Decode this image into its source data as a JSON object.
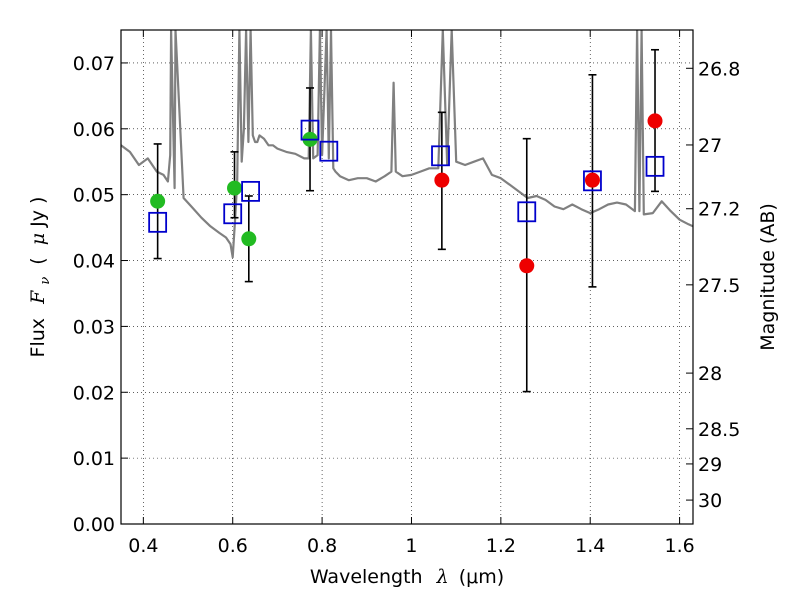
{
  "chart_data": {
    "type": "scatter",
    "title": "",
    "xlabel_text": "Wavelength",
    "xlabel_symbol": "λ",
    "xlabel_unit": "(μm)",
    "ylabel_text": "Flux",
    "ylabel_symbol": "F",
    "ylabel_subscript": "ν",
    "ylabel_unit_open": "(",
    "ylabel_unit_symbol": "μ",
    "ylabel_unit_rest": "Jy )",
    "y2label": "Magnitude (AB)",
    "xlim": [
      0.35,
      1.63
    ],
    "ylim": [
      0.0,
      0.075
    ],
    "x_ticks": [
      0.4,
      0.6,
      0.8,
      1.0,
      1.2,
      1.4,
      1.6
    ],
    "x_tick_labels": [
      "0.4",
      "0.6",
      "0.8",
      "1",
      "1.2",
      "1.4",
      "1.6"
    ],
    "y_ticks": [
      0.0,
      0.01,
      0.02,
      0.03,
      0.04,
      0.05,
      0.06,
      0.07
    ],
    "y_tick_labels": [
      "0.00",
      "0.01",
      "0.02",
      "0.03",
      "0.04",
      "0.05",
      "0.06",
      "0.07"
    ],
    "y2_ticks": [
      26.8,
      27,
      27.2,
      27.5,
      28,
      28.5,
      29,
      30
    ],
    "y2_tick_labels": [
      "26.8",
      "27",
      "27.2",
      "27.5",
      "28",
      "28.5",
      "29",
      "30"
    ],
    "grid": true,
    "colors": {
      "model_line": "#808080",
      "green_points": "#22bb22",
      "red_points": "#ee0000",
      "model_boxes": "#0000cc",
      "error_bars": "#000000"
    },
    "model_spectrum": {
      "x": [
        0.35,
        0.37,
        0.39,
        0.41,
        0.43,
        0.445,
        0.455,
        0.46,
        0.462,
        0.47,
        0.472,
        0.49,
        0.51,
        0.53,
        0.55,
        0.57,
        0.585,
        0.595,
        0.6,
        0.605,
        0.61,
        0.615,
        0.62,
        0.625,
        0.63,
        0.635,
        0.64,
        0.645,
        0.65,
        0.655,
        0.66,
        0.67,
        0.68,
        0.69,
        0.7,
        0.72,
        0.74,
        0.76,
        0.77,
        0.775,
        0.78,
        0.79,
        0.795,
        0.8,
        0.81,
        0.815,
        0.82,
        0.825,
        0.83,
        0.84,
        0.86,
        0.88,
        0.9,
        0.92,
        0.94,
        0.955,
        0.96,
        0.965,
        0.98,
        1.0,
        1.02,
        1.04,
        1.06,
        1.07,
        1.08,
        1.09,
        1.1,
        1.12,
        1.14,
        1.16,
        1.18,
        1.2,
        1.22,
        1.24,
        1.26,
        1.28,
        1.3,
        1.32,
        1.34,
        1.36,
        1.38,
        1.4,
        1.42,
        1.44,
        1.46,
        1.48,
        1.5,
        1.505,
        1.51,
        1.515,
        1.52,
        1.54,
        1.56,
        1.58,
        1.6,
        1.62,
        1.63
      ],
      "y": [
        0.0575,
        0.0565,
        0.0545,
        0.0555,
        0.0535,
        0.053,
        0.052,
        0.056,
        0.075,
        0.051,
        0.075,
        0.0495,
        0.048,
        0.0465,
        0.0452,
        0.0442,
        0.0435,
        0.0425,
        0.0405,
        0.046,
        0.052,
        0.075,
        0.055,
        0.06,
        0.075,
        0.058,
        0.075,
        0.059,
        0.058,
        0.058,
        0.059,
        0.0585,
        0.0575,
        0.0575,
        0.057,
        0.0565,
        0.0562,
        0.0555,
        0.0555,
        0.075,
        0.0555,
        0.056,
        0.075,
        0.056,
        0.075,
        0.0555,
        0.075,
        0.054,
        0.0535,
        0.0528,
        0.0522,
        0.0525,
        0.0525,
        0.052,
        0.0528,
        0.0535,
        0.067,
        0.0535,
        0.0528,
        0.053,
        0.0535,
        0.054,
        0.054,
        0.075,
        0.0545,
        0.075,
        0.055,
        0.0545,
        0.055,
        0.0555,
        0.053,
        0.0525,
        0.0515,
        0.0505,
        0.0495,
        0.0498,
        0.0492,
        0.0482,
        0.0478,
        0.0485,
        0.0478,
        0.0472,
        0.0478,
        0.0485,
        0.0488,
        0.0485,
        0.0475,
        0.075,
        0.0475,
        0.075,
        0.047,
        0.0472,
        0.049,
        0.0475,
        0.0462,
        0.0455,
        0.0452
      ]
    },
    "series": [
      {
        "marker": "circle",
        "x": [
          0.432,
          0.604,
          0.636,
          0.773
        ],
        "y": [
          0.049,
          0.051,
          0.0433,
          0.0584
        ]
      },
      {
        "marker": "circle",
        "x": [
          1.068,
          1.258,
          1.405,
          1.545
        ],
        "y": [
          0.0522,
          0.0392,
          0.0522,
          0.0612
        ]
      },
      {
        "marker": "open-square",
        "x": [
          0.432,
          0.6,
          0.64,
          0.773,
          0.815,
          1.065,
          1.258,
          1.405,
          1.545
        ],
        "y": [
          0.0458,
          0.0471,
          0.0505,
          0.0598,
          0.0566,
          0.0559,
          0.0474,
          0.0521,
          0.0543
        ]
      }
    ],
    "error_bars": [
      {
        "x": 0.432,
        "low": 0.0403,
        "high": 0.0577
      },
      {
        "x": 0.604,
        "low": 0.0465,
        "high": 0.0565
      },
      {
        "x": 0.636,
        "low": 0.0368,
        "high": 0.0498
      },
      {
        "x": 0.773,
        "low": 0.0506,
        "high": 0.0662
      },
      {
        "x": 1.068,
        "low": 0.0417,
        "high": 0.0625
      },
      {
        "x": 1.258,
        "low": 0.0201,
        "high": 0.0585
      },
      {
        "x": 1.405,
        "low": 0.036,
        "high": 0.0682
      },
      {
        "x": 1.545,
        "low": 0.0505,
        "high": 0.072
      }
    ]
  }
}
